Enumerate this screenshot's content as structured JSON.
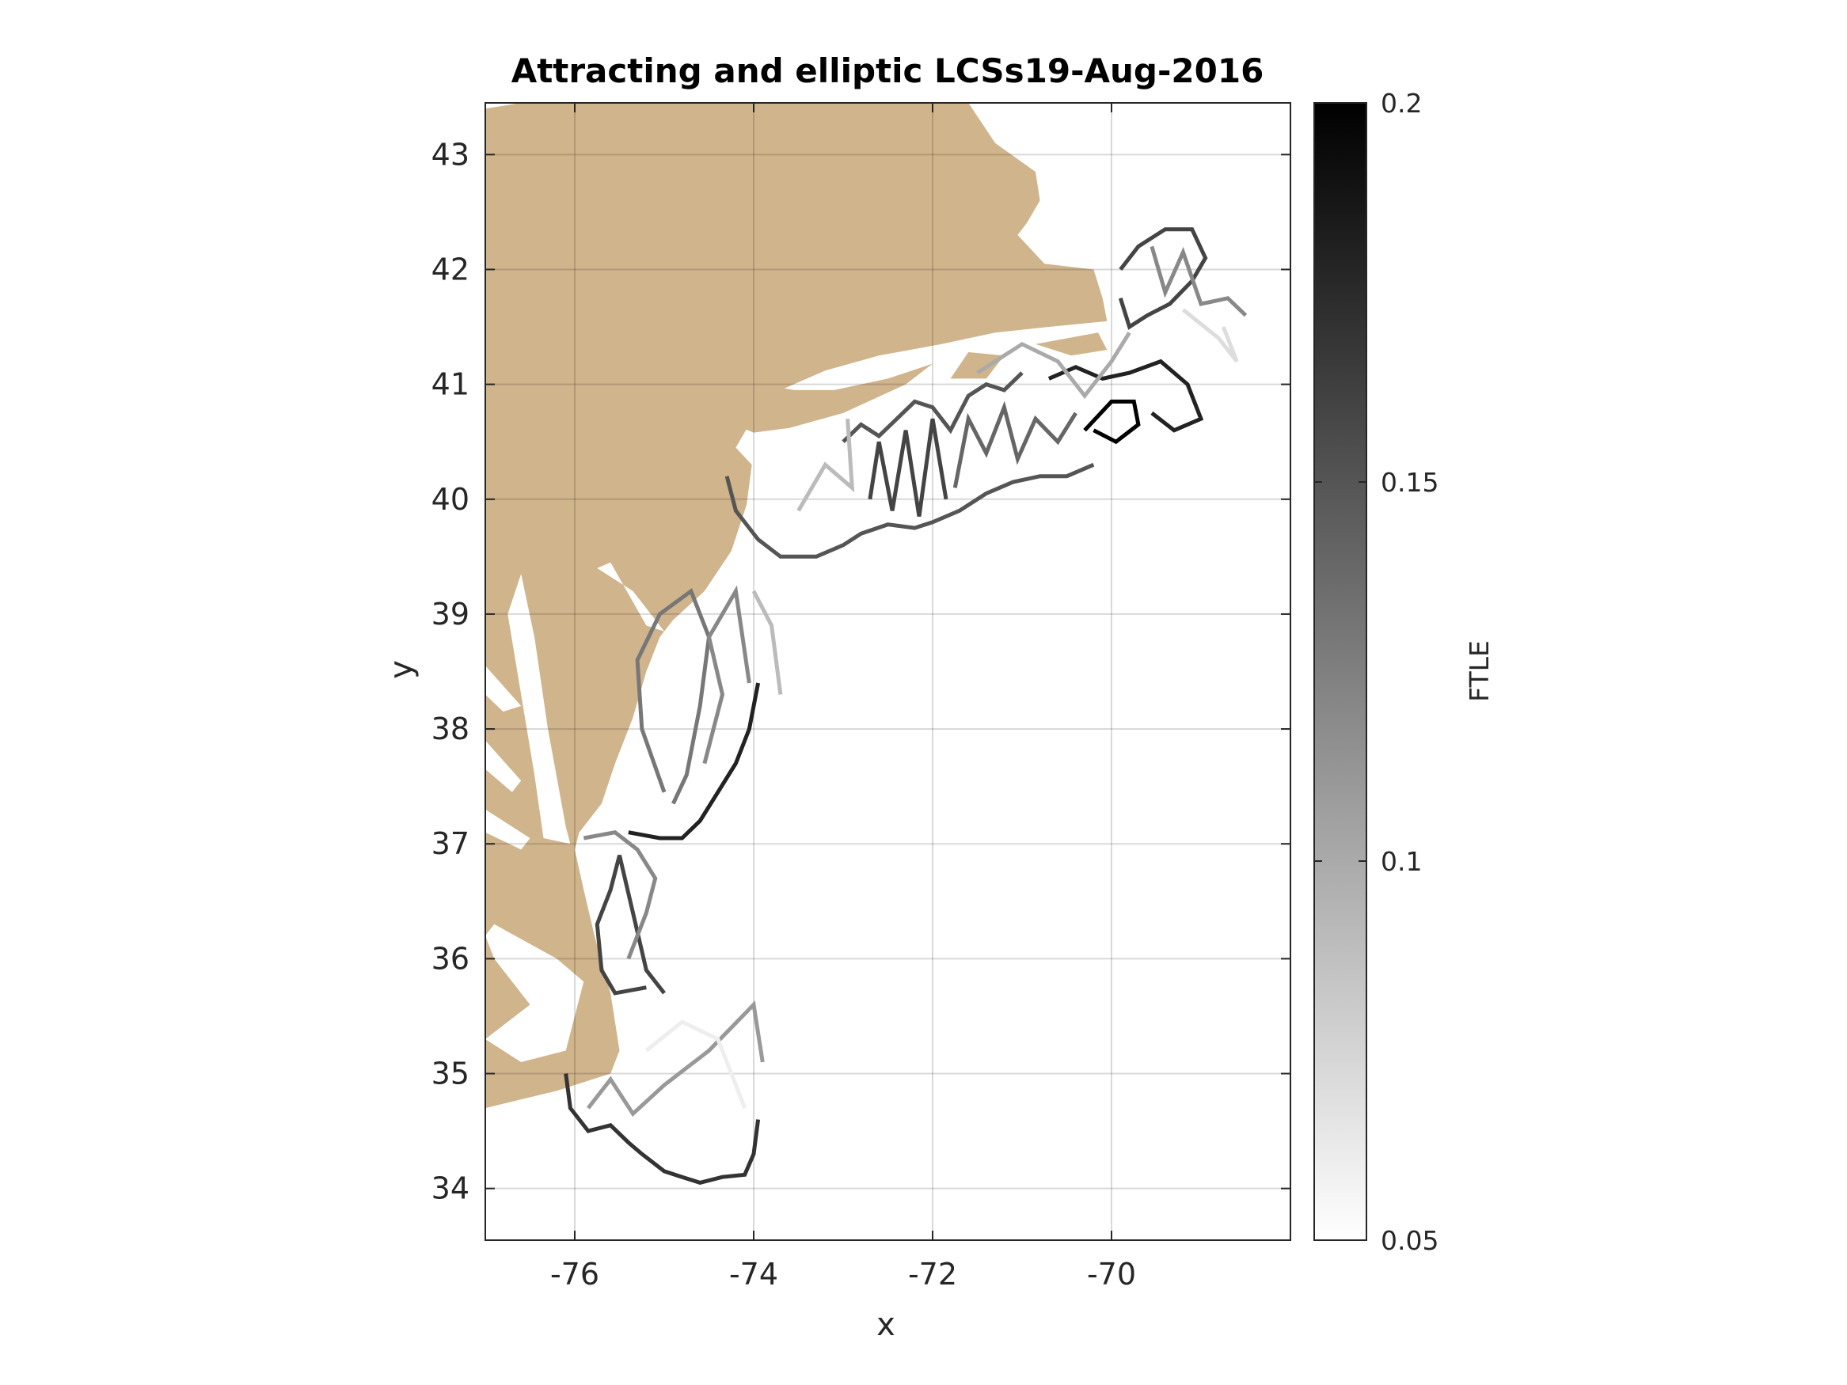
{
  "chart_data": {
    "type": "heatmap",
    "title": "Attracting and elliptic LCSs19-Aug-2016",
    "xlabel": "x",
    "ylabel": "y",
    "xlim": [
      -77,
      -68
    ],
    "ylim": [
      33.55,
      43.45
    ],
    "xticks": [
      -76,
      -74,
      -72,
      -70
    ],
    "xtick_labels": [
      "-76",
      "-74",
      "-72",
      "-70"
    ],
    "yticks": [
      34,
      35,
      36,
      37,
      38,
      39,
      40,
      41,
      42,
      43
    ],
    "ytick_labels": [
      "34",
      "35",
      "36",
      "37",
      "38",
      "39",
      "40",
      "41",
      "42",
      "43"
    ],
    "grid": true,
    "land_color": "#d0b48c",
    "colorbar": {
      "label": "FTLE",
      "range": [
        0.05,
        0.2
      ],
      "ticks": [
        0.05,
        0.1,
        0.15,
        0.2
      ],
      "tick_labels": [
        "0.05",
        "0.1",
        "0.15",
        "0.2"
      ],
      "colormap": "gray (white at 0.05, black at 0.2)"
    },
    "land": [
      [
        [
          -77,
          43.4
        ],
        [
          -76.6,
          43.45
        ],
        [
          -71.6,
          43.45
        ],
        [
          -71.3,
          43.1
        ],
        [
          -70.85,
          42.85
        ],
        [
          -70.8,
          42.6
        ],
        [
          -70.95,
          42.4
        ],
        [
          -71.05,
          42.3
        ],
        [
          -70.75,
          42.05
        ],
        [
          -70.2,
          42.0
        ],
        [
          -70.1,
          41.75
        ],
        [
          -70.05,
          41.55
        ],
        [
          -70.7,
          41.5
        ],
        [
          -71.3,
          41.45
        ],
        [
          -71.9,
          41.35
        ],
        [
          -72.6,
          41.25
        ],
        [
          -73.2,
          41.12
        ],
        [
          -73.7,
          40.95
        ],
        [
          -73.95,
          40.8
        ],
        [
          -74.05,
          40.65
        ],
        [
          -74.2,
          40.45
        ],
        [
          -74.02,
          40.3
        ],
        [
          -74.08,
          39.95
        ],
        [
          -74.25,
          39.55
        ],
        [
          -74.55,
          39.2
        ],
        [
          -74.9,
          38.95
        ],
        [
          -75.05,
          38.8
        ],
        [
          -75.2,
          38.5
        ],
        [
          -75.35,
          38.1
        ],
        [
          -75.55,
          37.7
        ],
        [
          -75.7,
          37.35
        ],
        [
          -75.95,
          37.1
        ],
        [
          -76.0,
          36.95
        ],
        [
          -75.9,
          36.6
        ],
        [
          -75.78,
          36.2
        ],
        [
          -75.6,
          35.7
        ],
        [
          -75.5,
          35.2
        ],
        [
          -75.6,
          35.0
        ],
        [
          -76.2,
          34.85
        ],
        [
          -77,
          34.7
        ]
      ],
      [
        [
          -75.65,
          41.1
        ],
        [
          -75.5,
          41.2
        ],
        [
          -74.5,
          41.25
        ],
        [
          -73.9,
          41.0
        ],
        [
          -73.55,
          40.95
        ],
        [
          -73.1,
          40.95
        ],
        [
          -72.5,
          41.05
        ],
        [
          -72.0,
          41.18
        ],
        [
          -72.3,
          41.0
        ],
        [
          -73.0,
          40.75
        ],
        [
          -73.6,
          40.62
        ],
        [
          -74.0,
          40.58
        ],
        [
          -75.65,
          41.1
        ]
      ],
      [
        [
          -71.8,
          41.05
        ],
        [
          -71.4,
          41.05
        ],
        [
          -71.2,
          41.25
        ],
        [
          -71.6,
          41.28
        ],
        [
          -71.8,
          41.05
        ]
      ],
      [
        [
          -70.85,
          41.35
        ],
        [
          -70.45,
          41.25
        ],
        [
          -70.05,
          41.3
        ],
        [
          -70.15,
          41.45
        ],
        [
          -70.85,
          41.35
        ]
      ]
    ],
    "water_inlets": [
      [
        [
          -75.75,
          39.4
        ],
        [
          -75.35,
          39.2
        ],
        [
          -75.0,
          38.85
        ],
        [
          -75.2,
          38.9
        ],
        [
          -75.6,
          39.45
        ],
        [
          -75.75,
          39.4
        ]
      ],
      [
        [
          -76.6,
          39.35
        ],
        [
          -76.45,
          38.8
        ],
        [
          -76.3,
          38.0
        ],
        [
          -76.1,
          37.15
        ],
        [
          -76.05,
          37.0
        ],
        [
          -76.35,
          37.05
        ],
        [
          -76.45,
          37.6
        ],
        [
          -76.6,
          38.3
        ],
        [
          -76.75,
          39.0
        ],
        [
          -76.6,
          39.35
        ]
      ],
      [
        [
          -77.0,
          38.55
        ],
        [
          -76.6,
          38.2
        ],
        [
          -76.8,
          38.15
        ],
        [
          -77.0,
          38.3
        ]
      ],
      [
        [
          -77.0,
          37.9
        ],
        [
          -76.6,
          37.55
        ],
        [
          -76.7,
          37.45
        ],
        [
          -77.0,
          37.65
        ]
      ],
      [
        [
          -77.0,
          37.3
        ],
        [
          -76.5,
          37.05
        ],
        [
          -76.6,
          36.95
        ],
        [
          -77.0,
          37.1
        ]
      ],
      [
        [
          -76.9,
          36.3
        ],
        [
          -76.2,
          36.0
        ],
        [
          -75.9,
          35.8
        ],
        [
          -76.1,
          35.2
        ],
        [
          -76.6,
          35.1
        ],
        [
          -77.0,
          35.3
        ],
        [
          -76.5,
          35.6
        ],
        [
          -76.9,
          36.0
        ],
        [
          -77.0,
          36.2
        ]
      ]
    ],
    "ridges": [
      {
        "ftle": 0.17,
        "points": [
          [
            -76.1,
            35.0
          ],
          [
            -76.05,
            34.7
          ],
          [
            -75.85,
            34.5
          ],
          [
            -75.6,
            34.55
          ],
          [
            -75.4,
            34.4
          ],
          [
            -75.25,
            34.3
          ],
          [
            -75.0,
            34.15
          ],
          [
            -74.8,
            34.1
          ],
          [
            -74.6,
            34.05
          ],
          [
            -74.35,
            34.1
          ],
          [
            -74.1,
            34.12
          ],
          [
            -74.0,
            34.3
          ],
          [
            -73.95,
            34.6
          ]
        ]
      },
      {
        "ftle": 0.11,
        "points": [
          [
            -75.85,
            34.7
          ],
          [
            -75.6,
            34.95
          ],
          [
            -75.35,
            34.65
          ],
          [
            -75.0,
            34.9
          ],
          [
            -74.5,
            35.2
          ],
          [
            -74.0,
            35.6
          ],
          [
            -73.9,
            35.1
          ]
        ]
      },
      {
        "ftle": 0.06,
        "points": [
          [
            -75.2,
            35.2
          ],
          [
            -74.8,
            35.45
          ],
          [
            -74.4,
            35.3
          ],
          [
            -74.1,
            34.7
          ]
        ]
      },
      {
        "ftle": 0.16,
        "points": [
          [
            -75.0,
            35.7
          ],
          [
            -75.2,
            35.9
          ],
          [
            -75.35,
            36.4
          ],
          [
            -75.5,
            36.9
          ],
          [
            -75.6,
            36.6
          ],
          [
            -75.75,
            36.3
          ],
          [
            -75.7,
            35.9
          ],
          [
            -75.55,
            35.7
          ],
          [
            -75.2,
            35.75
          ]
        ]
      },
      {
        "ftle": 0.12,
        "points": [
          [
            -75.4,
            36.0
          ],
          [
            -75.2,
            36.4
          ],
          [
            -75.1,
            36.7
          ],
          [
            -75.3,
            36.95
          ],
          [
            -75.55,
            37.1
          ],
          [
            -75.9,
            37.05
          ]
        ]
      },
      {
        "ftle": 0.18,
        "points": [
          [
            -75.4,
            37.1
          ],
          [
            -75.05,
            37.05
          ],
          [
            -74.8,
            37.05
          ],
          [
            -74.6,
            37.2
          ],
          [
            -74.4,
            37.45
          ],
          [
            -74.2,
            37.7
          ],
          [
            -74.05,
            38.0
          ],
          [
            -73.95,
            38.4
          ]
        ]
      },
      {
        "ftle": 0.13,
        "points": [
          [
            -75.0,
            37.45
          ],
          [
            -75.25,
            38.0
          ],
          [
            -75.3,
            38.6
          ],
          [
            -75.05,
            39.0
          ],
          [
            -74.7,
            39.2
          ],
          [
            -74.5,
            38.8
          ],
          [
            -74.6,
            38.2
          ],
          [
            -74.75,
            37.6
          ],
          [
            -74.9,
            37.35
          ]
        ]
      },
      {
        "ftle": 0.12,
        "points": [
          [
            -74.55,
            37.7
          ],
          [
            -74.35,
            38.3
          ],
          [
            -74.5,
            38.8
          ],
          [
            -74.2,
            39.2
          ],
          [
            -74.05,
            38.4
          ]
        ]
      },
      {
        "ftle": 0.09,
        "points": [
          [
            -74.0,
            39.2
          ],
          [
            -73.8,
            38.9
          ],
          [
            -73.7,
            38.3
          ]
        ]
      },
      {
        "ftle": 0.15,
        "points": [
          [
            -74.3,
            40.2
          ],
          [
            -74.2,
            39.9
          ],
          [
            -73.95,
            39.65
          ],
          [
            -73.7,
            39.5
          ],
          [
            -73.3,
            39.5
          ],
          [
            -73.0,
            39.6
          ],
          [
            -72.8,
            39.7
          ],
          [
            -72.5,
            39.78
          ],
          [
            -72.2,
            39.75
          ],
          [
            -72.0,
            39.8
          ],
          [
            -71.7,
            39.9
          ],
          [
            -71.4,
            40.05
          ],
          [
            -71.1,
            40.15
          ],
          [
            -70.8,
            40.2
          ],
          [
            -70.5,
            40.2
          ],
          [
            -70.2,
            40.3
          ]
        ]
      },
      {
        "ftle": 0.15,
        "points": [
          [
            -73.0,
            40.5
          ],
          [
            -72.8,
            40.65
          ],
          [
            -72.6,
            40.55
          ],
          [
            -72.4,
            40.7
          ],
          [
            -72.2,
            40.85
          ],
          [
            -72.0,
            40.8
          ],
          [
            -71.8,
            40.6
          ],
          [
            -71.6,
            40.9
          ],
          [
            -71.4,
            41.0
          ],
          [
            -71.2,
            40.95
          ],
          [
            -71.0,
            41.1
          ]
        ]
      },
      {
        "ftle": 0.16,
        "points": [
          [
            -72.7,
            40.0
          ],
          [
            -72.6,
            40.5
          ],
          [
            -72.45,
            39.9
          ],
          [
            -72.3,
            40.6
          ],
          [
            -72.15,
            39.85
          ],
          [
            -72.0,
            40.7
          ],
          [
            -71.85,
            40.0
          ]
        ]
      },
      {
        "ftle": 0.14,
        "points": [
          [
            -71.75,
            40.1
          ],
          [
            -71.6,
            40.7
          ],
          [
            -71.4,
            40.4
          ],
          [
            -71.2,
            40.8
          ],
          [
            -71.05,
            40.35
          ],
          [
            -70.85,
            40.7
          ],
          [
            -70.6,
            40.5
          ],
          [
            -70.4,
            40.75
          ]
        ]
      },
      {
        "ftle": 0.2,
        "points": [
          [
            -70.3,
            40.6
          ],
          [
            -70.0,
            40.85
          ],
          [
            -69.75,
            40.85
          ],
          [
            -69.7,
            40.65
          ],
          [
            -69.95,
            40.5
          ],
          [
            -70.2,
            40.6
          ]
        ]
      },
      {
        "ftle": 0.18,
        "points": [
          [
            -70.7,
            41.05
          ],
          [
            -70.4,
            41.15
          ],
          [
            -70.1,
            41.05
          ],
          [
            -69.8,
            41.1
          ],
          [
            -69.45,
            41.2
          ],
          [
            -69.15,
            41.0
          ],
          [
            -69.0,
            40.7
          ],
          [
            -69.3,
            40.6
          ],
          [
            -69.55,
            40.75
          ]
        ]
      },
      {
        "ftle": 0.16,
        "points": [
          [
            -69.9,
            42.0
          ],
          [
            -69.7,
            42.2
          ],
          [
            -69.4,
            42.35
          ],
          [
            -69.1,
            42.35
          ],
          [
            -68.95,
            42.1
          ],
          [
            -69.1,
            41.9
          ],
          [
            -69.35,
            41.7
          ],
          [
            -69.6,
            41.6
          ],
          [
            -69.8,
            41.5
          ],
          [
            -69.9,
            41.75
          ]
        ]
      },
      {
        "ftle": 0.12,
        "points": [
          [
            -69.55,
            42.2
          ],
          [
            -69.4,
            41.8
          ],
          [
            -69.2,
            42.15
          ],
          [
            -69.0,
            41.7
          ],
          [
            -68.7,
            41.75
          ],
          [
            -68.5,
            41.6
          ]
        ]
      },
      {
        "ftle": 0.07,
        "points": [
          [
            -69.2,
            41.65
          ],
          [
            -68.8,
            41.4
          ],
          [
            -68.6,
            41.2
          ],
          [
            -68.75,
            41.5
          ]
        ]
      },
      {
        "ftle": 0.1,
        "points": [
          [
            -71.5,
            41.1
          ],
          [
            -71.0,
            41.35
          ],
          [
            -70.6,
            41.2
          ],
          [
            -70.3,
            40.9
          ],
          [
            -70.0,
            41.2
          ],
          [
            -69.8,
            41.45
          ]
        ]
      },
      {
        "ftle": 0.09,
        "points": [
          [
            -73.5,
            39.9
          ],
          [
            -73.2,
            40.3
          ],
          [
            -72.9,
            40.1
          ],
          [
            -72.95,
            40.7
          ]
        ]
      }
    ]
  }
}
